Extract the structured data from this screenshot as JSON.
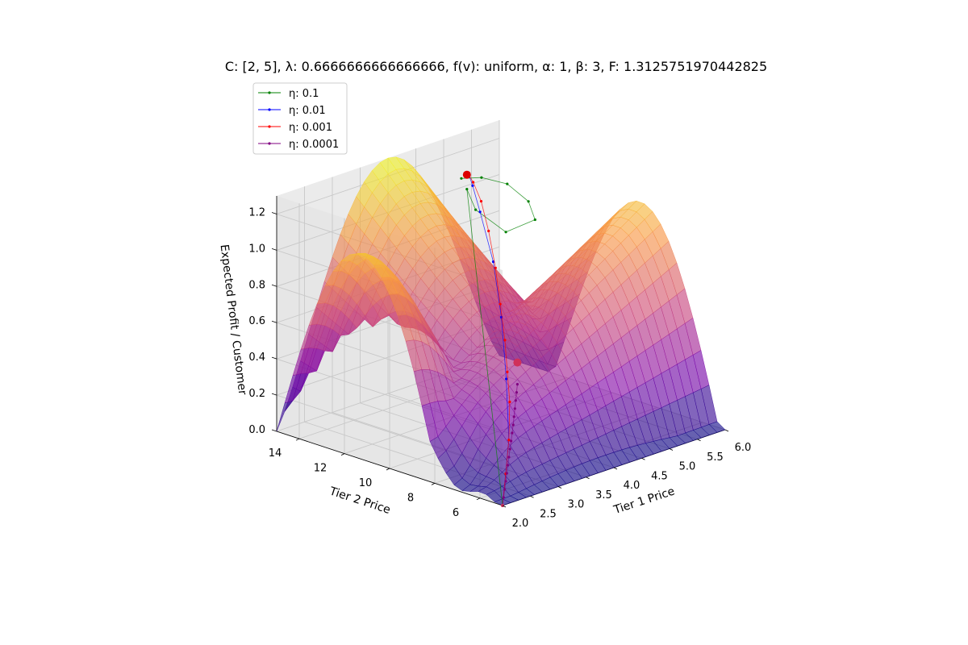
{
  "chart_data": {
    "type": "surface3d",
    "title": "C: [2, 5], λ: 0.6666666666666666, f(v): uniform, α: 1, β: 3, F: 1.3125751970442825",
    "xlabel": "Tier 1 Price",
    "ylabel": "Tier 2 Price",
    "zlabel": "Expected Profit / Customer",
    "x_ticks": [
      "2.0",
      "2.5",
      "3.0",
      "3.5",
      "4.0",
      "4.5",
      "5.0",
      "5.5",
      "6.0"
    ],
    "y_ticks": [
      "6",
      "8",
      "10",
      "12",
      "14"
    ],
    "z_ticks": [
      "0.0",
      "0.2",
      "0.4",
      "0.6",
      "0.8",
      "1.0",
      "1.2"
    ],
    "xlim": [
      2,
      6
    ],
    "ylim": [
      5,
      15
    ],
    "zlim": [
      0,
      1.3
    ],
    "colormap": "plasma",
    "legend_position": "top-left",
    "series": [
      {
        "name": "η: 0.1",
        "color": "#008000",
        "points": [
          [
            2.0,
            5.0,
            0.0
          ],
          [
            4.2,
            12.0,
            1.23
          ],
          [
            4.6,
            12.6,
            1.05
          ],
          [
            4.9,
            12.0,
            0.92
          ],
          [
            5.1,
            11.2,
            1.0
          ],
          [
            4.9,
            11.0,
            1.13
          ],
          [
            4.6,
            11.2,
            1.25
          ],
          [
            4.3,
            11.6,
            1.3
          ],
          [
            4.1,
            12.0,
            1.3
          ]
        ]
      },
      {
        "name": "η: 0.01",
        "color": "#0000ff",
        "points": [
          [
            2.0,
            5.0,
            0.0
          ],
          [
            2.6,
            6.2,
            0.25
          ],
          [
            3.0,
            7.3,
            0.5
          ],
          [
            3.4,
            8.5,
            0.75
          ],
          [
            3.7,
            9.6,
            0.98
          ],
          [
            3.95,
            10.8,
            1.18
          ],
          [
            4.1,
            11.5,
            1.28
          ],
          [
            4.2,
            11.9,
            1.31
          ]
        ]
      },
      {
        "name": "η: 0.001",
        "color": "#ff0000",
        "points": [
          [
            2.0,
            5.0,
            0.0
          ],
          [
            2.3,
            5.6,
            0.12
          ],
          [
            2.6,
            6.2,
            0.25
          ],
          [
            2.9,
            6.9,
            0.4
          ],
          [
            3.1,
            7.5,
            0.52
          ],
          [
            3.3,
            8.1,
            0.65
          ],
          [
            3.5,
            8.8,
            0.8
          ],
          [
            3.7,
            9.5,
            0.95
          ],
          [
            3.9,
            10.3,
            1.1
          ],
          [
            4.05,
            11.0,
            1.22
          ],
          [
            4.15,
            11.6,
            1.29
          ],
          [
            4.2,
            11.9,
            1.31
          ]
        ]
      },
      {
        "name": "η: 0.0001",
        "color": "#800080",
        "points": [
          [
            2.0,
            5.0,
            0.0
          ],
          [
            2.08,
            5.15,
            0.03
          ],
          [
            2.16,
            5.3,
            0.06
          ],
          [
            2.24,
            5.45,
            0.09
          ],
          [
            2.32,
            5.6,
            0.12
          ],
          [
            2.4,
            5.75,
            0.15
          ],
          [
            2.48,
            5.9,
            0.18
          ],
          [
            2.56,
            6.05,
            0.21
          ],
          [
            2.64,
            6.2,
            0.24
          ],
          [
            2.72,
            6.35,
            0.27
          ],
          [
            2.8,
            6.5,
            0.3
          ],
          [
            2.88,
            6.66,
            0.33
          ],
          [
            2.96,
            6.82,
            0.36
          ],
          [
            3.04,
            6.98,
            0.39
          ],
          [
            3.12,
            7.14,
            0.42
          ],
          [
            3.2,
            7.3,
            0.45
          ]
        ]
      }
    ],
    "markers": [
      {
        "role": "start",
        "point": [
          2.0,
          5.0,
          0.0
        ]
      },
      {
        "role": "mid",
        "point": [
          3.2,
          7.3,
          0.57
        ]
      },
      {
        "role": "optimum",
        "point": [
          4.2,
          12.0,
          1.31
        ]
      }
    ]
  }
}
